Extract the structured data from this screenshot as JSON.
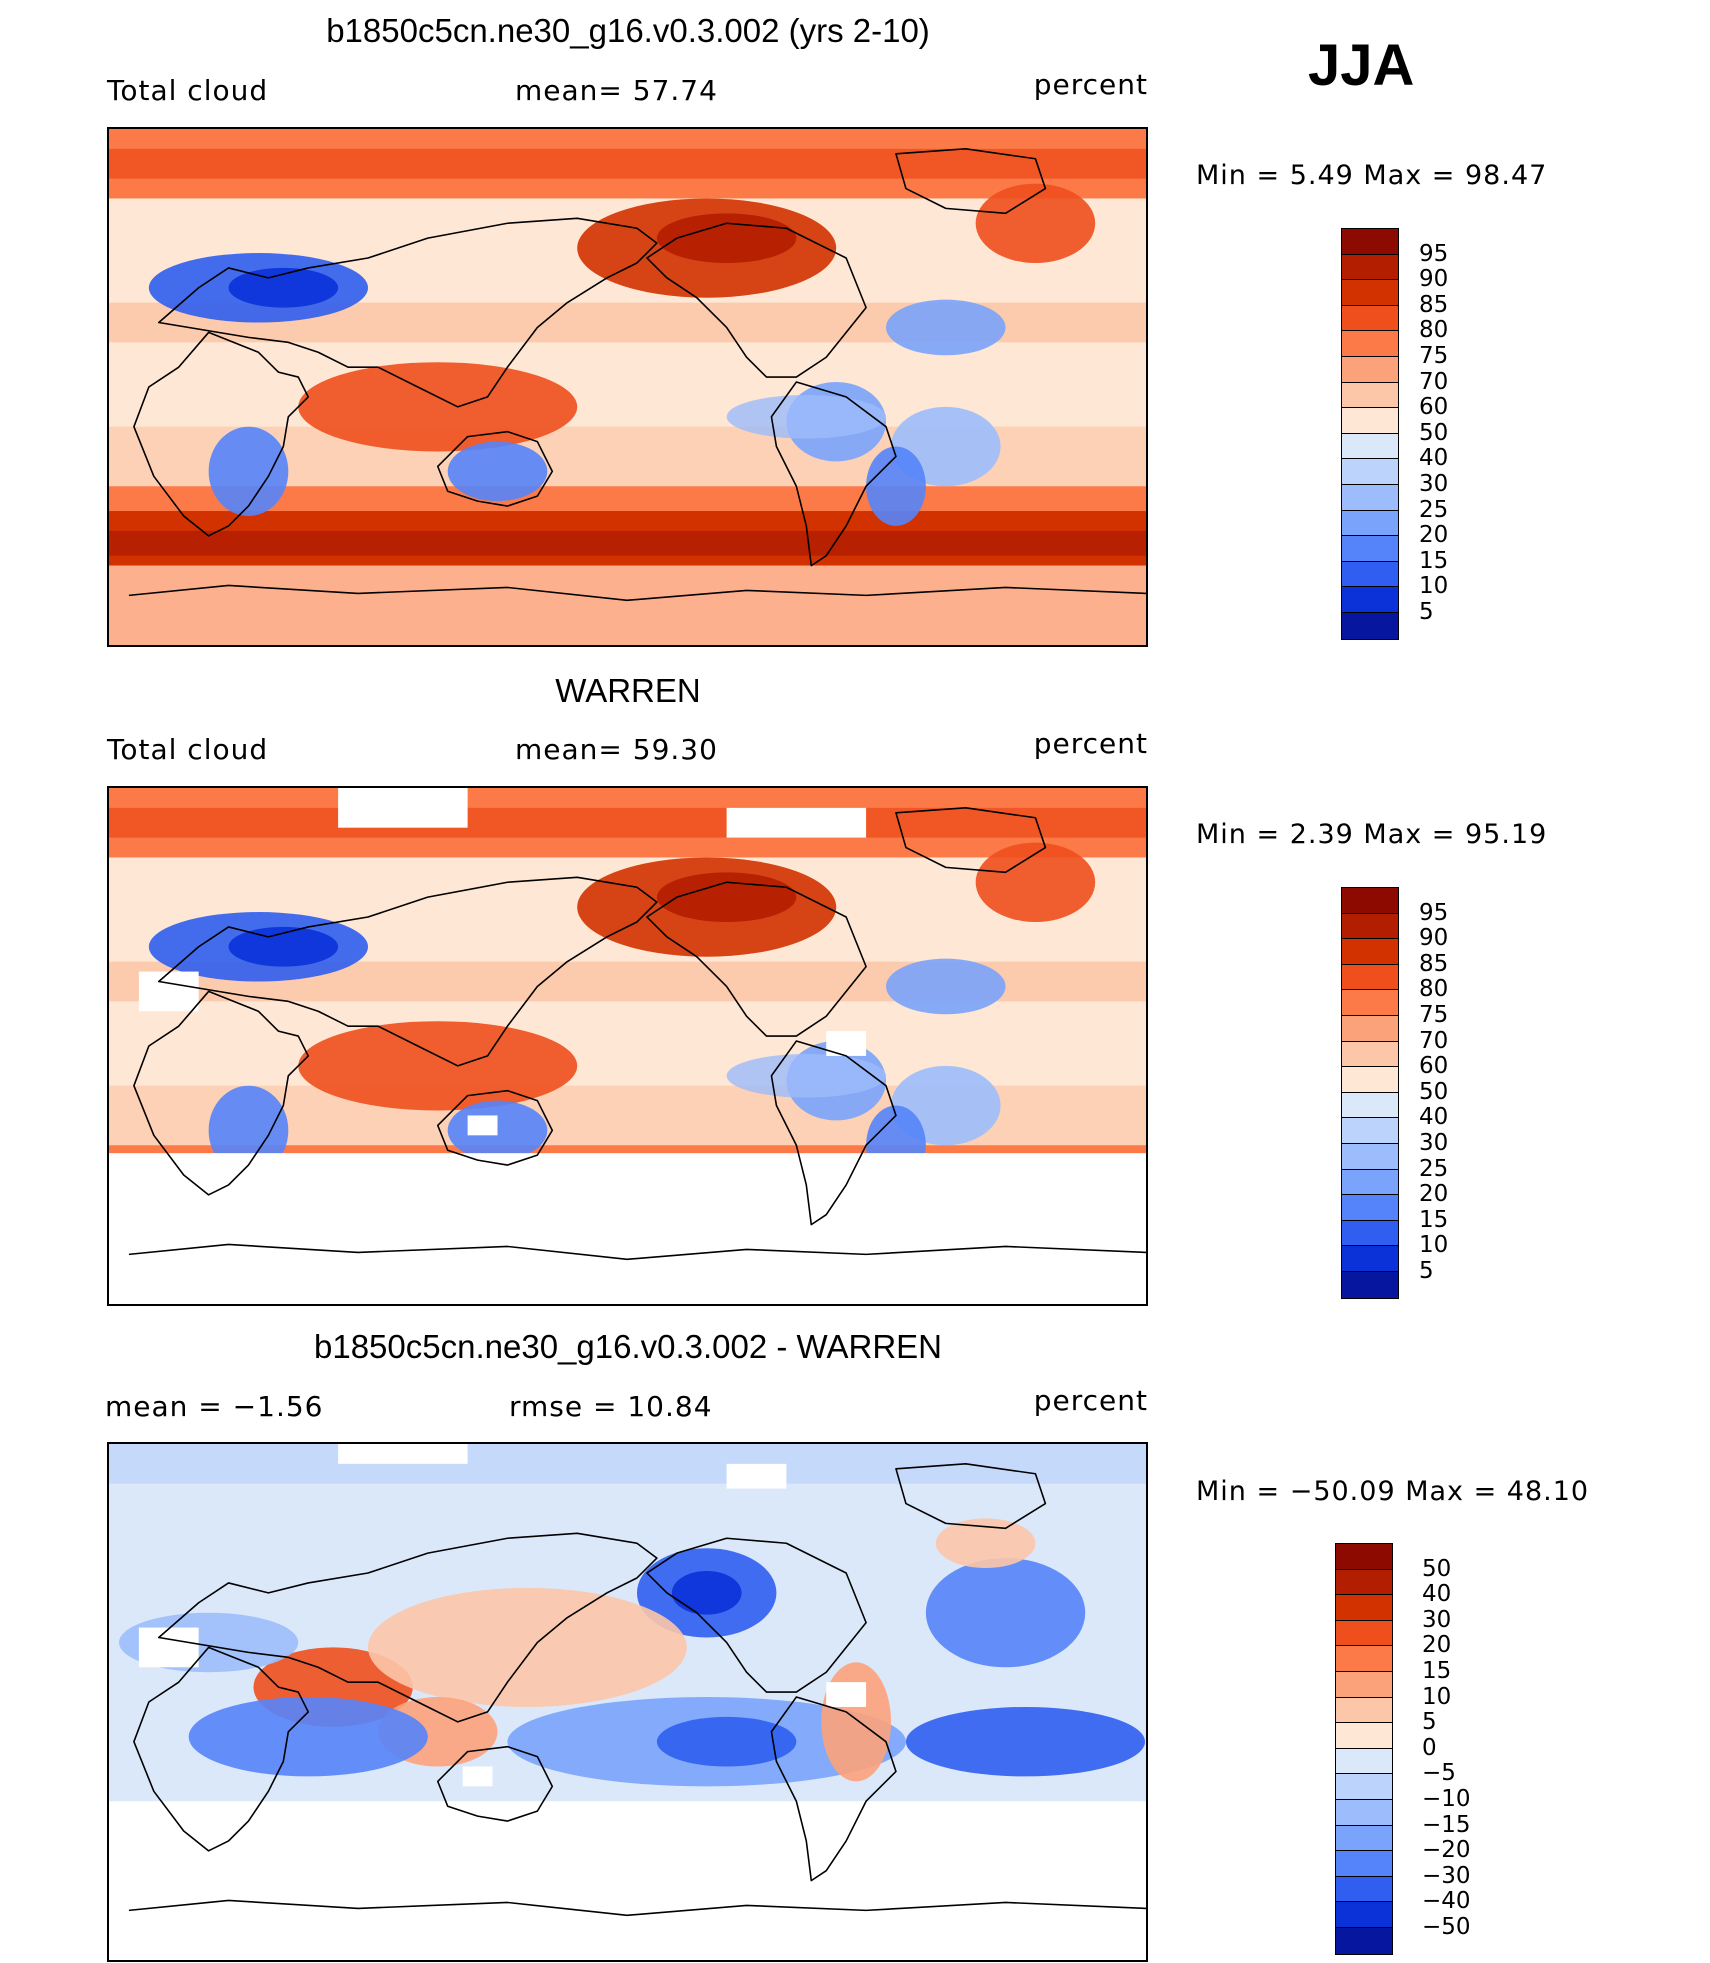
{
  "season": "JJA",
  "panels": [
    {
      "title": "b1850c5cn.ne30_g16.v0.3.002 (yrs 2-10)",
      "left_label": "Total cloud",
      "center_label": "mean=   57.74",
      "units": "percent",
      "min_max": "Min =    5.49  Max =    98.47",
      "colorbar_labels": [
        "95",
        "90",
        "85",
        "80",
        "75",
        "70",
        "60",
        "50",
        "40",
        "30",
        "25",
        "20",
        "15",
        "10",
        "5"
      ],
      "colors": [
        "#8c0a00",
        "#b41e00",
        "#d23200",
        "#ee4f1d",
        "#fc7a48",
        "#fca27a",
        "#fcc7a8",
        "#fee7d4",
        "#dbe8fa",
        "#bcd3fb",
        "#9cbcfb",
        "#7aa3fb",
        "#5584fa",
        "#2f5ef0",
        "#0a32d8",
        "#06169e"
      ],
      "map_type": "abs",
      "has_missing": false
    },
    {
      "title": "WARREN",
      "left_label": "Total cloud",
      "center_label": "mean=   59.30",
      "units": "percent",
      "min_max": "Min =    2.39  Max =    95.19",
      "colorbar_labels": [
        "95",
        "90",
        "85",
        "80",
        "75",
        "70",
        "60",
        "50",
        "40",
        "30",
        "25",
        "20",
        "15",
        "10",
        "5"
      ],
      "colors": [
        "#8c0a00",
        "#b41e00",
        "#d23200",
        "#ee4f1d",
        "#fc7a48",
        "#fca27a",
        "#fcc7a8",
        "#fee7d4",
        "#dbe8fa",
        "#bcd3fb",
        "#9cbcfb",
        "#7aa3fb",
        "#5584fa",
        "#2f5ef0",
        "#0a32d8",
        "#06169e"
      ],
      "map_type": "obs",
      "has_missing": true
    },
    {
      "title": "b1850c5cn.ne30_g16.v0.3.002 - WARREN",
      "left_label": "mean =   −1.56",
      "center_label": "rmse =    10.84",
      "units": "percent",
      "min_max": "Min = −50.09  Max =    48.10",
      "colorbar_labels": [
        "50",
        "40",
        "30",
        "20",
        "15",
        "10",
        "5",
        "0",
        "−5",
        "−10",
        "−15",
        "−20",
        "−30",
        "−40",
        "−50"
      ],
      "colors": [
        "#8c0a00",
        "#b41e00",
        "#d23200",
        "#ee4f1d",
        "#fc7a48",
        "#fca27a",
        "#fcc7a8",
        "#fee7d4",
        "#dbe8fa",
        "#bcd3fb",
        "#9cbcfb",
        "#7aa3fb",
        "#5584fa",
        "#2f5ef0",
        "#0a32d8",
        "#06169e"
      ],
      "map_type": "diff",
      "has_missing": true
    }
  ]
}
